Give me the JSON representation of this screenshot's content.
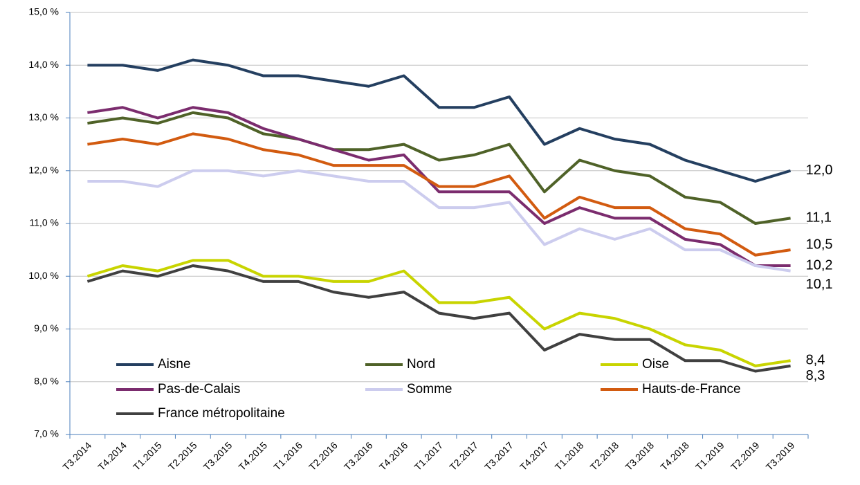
{
  "chart_data": {
    "type": "line",
    "categories": [
      "T3.2014",
      "T4.2014",
      "T1.2015",
      "T2.2015",
      "T3.2015",
      "T4.2015",
      "T1.2016",
      "T2.2016",
      "T3.2016",
      "T4.2016",
      "T1.2017",
      "T2.2017",
      "T3.2017",
      "T4.2017",
      "T1.2018",
      "T2.2018",
      "T3.2018",
      "T4.2018",
      "T1.2019",
      "T2.2019",
      "T3.2019"
    ],
    "ylim": [
      7,
      15
    ],
    "yticks": [
      {
        "value": 7,
        "label": "7,0 %"
      },
      {
        "value": 8,
        "label": "8,0 %"
      },
      {
        "value": 9,
        "label": "9,0 %"
      },
      {
        "value": 10,
        "label": "10,0 %"
      },
      {
        "value": 11,
        "label": "11,0 %"
      },
      {
        "value": 12,
        "label": "12,0 %"
      },
      {
        "value": 13,
        "label": "13,0 %"
      },
      {
        "value": 14,
        "label": "14,0 %"
      },
      {
        "value": 15,
        "label": "15,0 %"
      }
    ],
    "grid": true,
    "series": [
      {
        "name": "Aisne",
        "color": "#243f60",
        "values": [
          14.0,
          14.0,
          13.9,
          14.1,
          14.0,
          13.8,
          13.8,
          13.7,
          13.6,
          13.8,
          13.2,
          13.2,
          13.4,
          12.5,
          12.8,
          12.6,
          12.5,
          12.2,
          12.0,
          11.8,
          12.0
        ],
        "value_labels": [
          null,
          null,
          null,
          null,
          null,
          null,
          null,
          null,
          null,
          null,
          null,
          null,
          null,
          null,
          null,
          null,
          null,
          null,
          null,
          null,
          "12,0"
        ]
      },
      {
        "name": "Nord",
        "color": "#4f6228",
        "values": [
          12.9,
          13.0,
          12.9,
          13.1,
          13.0,
          12.7,
          12.6,
          12.4,
          12.4,
          12.5,
          12.2,
          12.3,
          12.5,
          11.6,
          12.2,
          12.0,
          11.9,
          11.5,
          11.4,
          11.0,
          11.1
        ],
        "value_labels": [
          null,
          null,
          null,
          null,
          null,
          null,
          null,
          null,
          null,
          null,
          null,
          null,
          null,
          null,
          null,
          null,
          null,
          null,
          null,
          null,
          "11,1"
        ]
      },
      {
        "name": "Oise",
        "color": "#c8d400",
        "values": [
          10.0,
          10.2,
          10.1,
          10.3,
          10.3,
          10.0,
          10.0,
          9.9,
          9.9,
          10.1,
          9.5,
          9.5,
          9.6,
          9.0,
          9.3,
          9.2,
          9.0,
          8.7,
          8.6,
          8.3,
          8.4
        ],
        "value_labels": [
          null,
          null,
          null,
          null,
          null,
          null,
          null,
          null,
          null,
          null,
          null,
          null,
          null,
          null,
          null,
          null,
          null,
          null,
          null,
          null,
          "8,4"
        ]
      },
      {
        "name": "Pas-de-Calais",
        "color": "#7b2c6e",
        "values": [
          13.1,
          13.2,
          13.0,
          13.2,
          13.1,
          12.8,
          12.6,
          12.4,
          12.2,
          12.3,
          11.6,
          11.6,
          11.6,
          11.0,
          11.3,
          11.1,
          11.1,
          10.7,
          10.6,
          10.2,
          10.2
        ],
        "value_labels": [
          null,
          null,
          null,
          null,
          null,
          null,
          null,
          null,
          null,
          null,
          null,
          null,
          null,
          null,
          null,
          null,
          null,
          null,
          null,
          null,
          "10,2"
        ]
      },
      {
        "name": "Somme",
        "color": "#ccccee",
        "values": [
          11.8,
          11.8,
          11.7,
          12.0,
          12.0,
          11.9,
          12.0,
          11.9,
          11.8,
          11.8,
          11.3,
          11.3,
          11.4,
          10.6,
          10.9,
          10.7,
          10.9,
          10.5,
          10.5,
          10.2,
          10.1
        ],
        "value_labels": [
          null,
          null,
          null,
          null,
          null,
          null,
          null,
          null,
          null,
          null,
          null,
          null,
          null,
          null,
          null,
          null,
          null,
          null,
          null,
          null,
          "10,1"
        ]
      },
      {
        "name": "Hauts-de-France",
        "color": "#d25b10",
        "values": [
          12.5,
          12.6,
          12.5,
          12.7,
          12.6,
          12.4,
          12.3,
          12.1,
          12.1,
          12.1,
          11.7,
          11.7,
          11.9,
          11.1,
          11.5,
          11.3,
          11.3,
          10.9,
          10.8,
          10.4,
          10.5
        ],
        "value_labels": [
          null,
          null,
          null,
          null,
          null,
          null,
          null,
          null,
          null,
          null,
          null,
          null,
          null,
          null,
          null,
          null,
          null,
          null,
          null,
          null,
          "10,5"
        ]
      },
      {
        "name": "France métropolitaine",
        "color": "#404040",
        "values": [
          9.9,
          10.1,
          10.0,
          10.2,
          10.1,
          9.9,
          9.9,
          9.7,
          9.6,
          9.7,
          9.3,
          9.2,
          9.3,
          8.6,
          8.9,
          8.8,
          8.8,
          8.4,
          8.4,
          8.2,
          8.3
        ],
        "value_labels": [
          null,
          null,
          null,
          null,
          null,
          null,
          null,
          null,
          null,
          null,
          null,
          null,
          null,
          null,
          null,
          null,
          null,
          null,
          null,
          null,
          "8,3"
        ]
      }
    ]
  }
}
